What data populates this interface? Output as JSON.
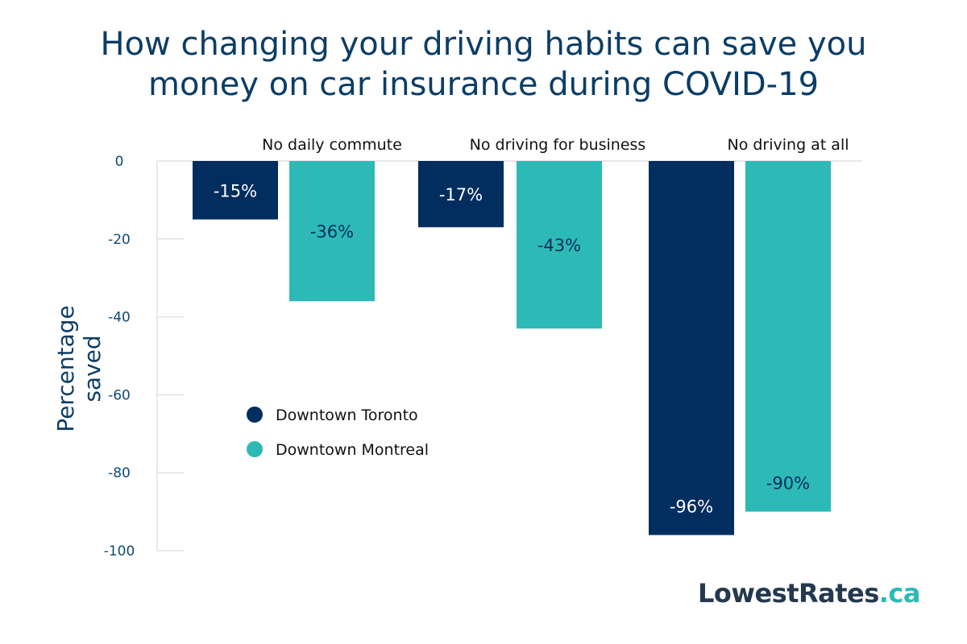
{
  "title_line1": "How changing your driving habits can save you",
  "title_line2": "money on car insurance during COVID-19",
  "logo": {
    "main": "LowestRates",
    "suffix": ".ca"
  },
  "colors": {
    "toronto": "#022d5f",
    "montreal": "#2dbab6",
    "text": "#0e4a74"
  },
  "chart_data": {
    "type": "bar",
    "title": "How changing your driving habits can save you money on car insurance during COVID-19",
    "xlabel": "",
    "ylabel": "Percentage saved",
    "ylim": [
      -100,
      0
    ],
    "yticks": [
      0,
      -20,
      -40,
      -60,
      -80,
      -100
    ],
    "categories": [
      "No daily commute",
      "No driving for business",
      "No driving at all"
    ],
    "series": [
      {
        "name": "Downtown Toronto",
        "values": [
          -15,
          -17,
          -96
        ],
        "labels": [
          "-15%",
          "-17%",
          "-96%"
        ]
      },
      {
        "name": "Downtown Montreal",
        "values": [
          -36,
          -43,
          -90
        ],
        "labels": [
          "-36%",
          "-43%",
          "-90%"
        ]
      }
    ],
    "legend_position": "center-left",
    "grid": false
  }
}
